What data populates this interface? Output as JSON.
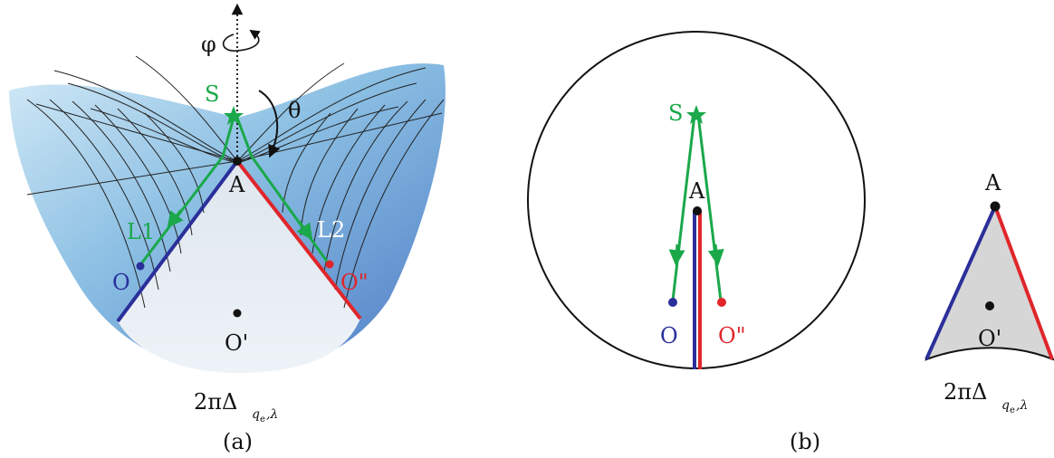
{
  "panel_a": {
    "caption": "(a)",
    "axis_phi": "φ",
    "axis_theta": "θ",
    "source_label": "S",
    "apex_label": "A",
    "ray1_label": "L1",
    "ray2_label": "L2",
    "observer_label": "O",
    "image_label": "O\"",
    "center_label": "O'",
    "deficit_main": "2πΔ",
    "deficit_sub": "q",
    "deficit_subsub": "e",
    "deficit_sub2": ",λ"
  },
  "panel_b": {
    "caption": "(b)",
    "source_label": "S",
    "apex_label": "A",
    "observer_label": "O",
    "image_label": "O\""
  },
  "panel_c": {
    "apex_label": "A",
    "center_label": "O'",
    "deficit_main": "2πΔ",
    "deficit_sub": "q",
    "deficit_subsub": "e",
    "deficit_sub2": ",λ"
  },
  "colors": {
    "green": "#1aa84a",
    "blue": "#2b2f9a",
    "red": "#e0262b",
    "black": "#111111",
    "fill_gray": "#d6d6d6"
  }
}
